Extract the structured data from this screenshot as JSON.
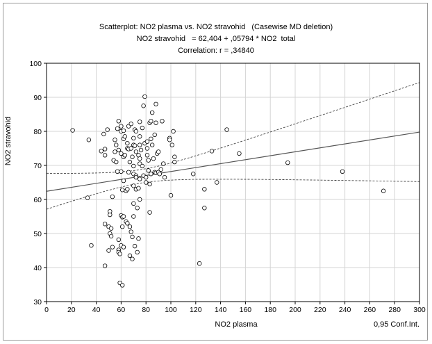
{
  "chart_data": {
    "type": "scatter",
    "title": "Scatterplot: NO2 plasma vs. NO2 stravohid   (Casewise MD deletion)",
    "subtitle_equation": "NO2 stravohid   = 62,404 + ,05794 * NO2  total",
    "subtitle_correlation": "Correlation: r = ,34840",
    "xlabel": "NO2 plasma",
    "ylabel": "NO2 stravohid",
    "conf_label": "0,95 Conf.Int.",
    "xlim": [
      0,
      300
    ],
    "ylim": [
      30,
      100
    ],
    "xticks": [
      "0",
      "20",
      "40",
      "60",
      "80",
      "100",
      "120",
      "140",
      "160",
      "180",
      "200",
      "220",
      "240",
      "260",
      "280",
      "300"
    ],
    "yticks": [
      "30",
      "40",
      "50",
      "60",
      "70",
      "80",
      "90",
      "100"
    ],
    "grid": true,
    "regression": {
      "intercept": 62.404,
      "slope": 0.05794
    },
    "series": [
      {
        "points": [
          [
            21,
            80.3
          ],
          [
            33,
            60.5
          ],
          [
            34,
            77.5
          ],
          [
            36,
            46.5
          ],
          [
            44,
            74.2
          ],
          [
            46,
            79.2
          ],
          [
            47,
            74.8
          ],
          [
            47,
            73.0
          ],
          [
            47,
            52.8
          ],
          [
            47,
            40.5
          ],
          [
            49,
            80.5
          ],
          [
            50,
            52.0
          ],
          [
            50,
            45.0
          ],
          [
            51,
            56.5
          ],
          [
            51,
            55.5
          ],
          [
            51,
            50.0
          ],
          [
            52,
            51.5
          ],
          [
            52,
            49.2
          ],
          [
            53,
            60.8
          ],
          [
            53,
            46.0
          ],
          [
            54,
            71.5
          ],
          [
            55,
            77.5
          ],
          [
            55,
            74.0
          ],
          [
            56,
            76.0
          ],
          [
            56,
            71.0
          ],
          [
            57,
            80.8
          ],
          [
            57,
            68.2
          ],
          [
            58,
            83.0
          ],
          [
            58,
            74.5
          ],
          [
            58,
            48.2
          ],
          [
            58,
            45.2
          ],
          [
            58,
            44.5
          ],
          [
            59,
            44.0
          ],
          [
            59,
            35.5
          ],
          [
            60,
            81.5
          ],
          [
            60,
            80.0
          ],
          [
            60,
            73.5
          ],
          [
            60,
            68.2
          ],
          [
            60,
            55.3
          ],
          [
            60,
            46.5
          ],
          [
            61,
            62.8
          ],
          [
            61,
            54.8
          ],
          [
            61,
            52.0
          ],
          [
            61,
            34.8
          ],
          [
            62,
            80.2
          ],
          [
            62,
            77.8
          ],
          [
            62,
            72.5
          ],
          [
            62,
            65.5
          ],
          [
            62,
            55.0
          ],
          [
            62,
            46.0
          ],
          [
            63,
            78.5
          ],
          [
            63,
            73.0
          ],
          [
            64,
            62.5
          ],
          [
            64,
            53.5
          ],
          [
            65,
            76.5
          ],
          [
            65,
            75.0
          ],
          [
            65,
            63.0
          ],
          [
            65,
            53.0
          ],
          [
            66,
            81.5
          ],
          [
            66,
            74.8
          ],
          [
            66,
            68.0
          ],
          [
            67,
            71.0
          ],
          [
            67,
            52.0
          ],
          [
            67,
            43.5
          ],
          [
            68,
            82.2
          ],
          [
            68,
            75.0
          ],
          [
            68,
            50.5
          ],
          [
            69,
            72.5
          ],
          [
            69,
            49.0
          ],
          [
            69,
            42.5
          ],
          [
            70,
            78.0
          ],
          [
            70,
            76.0
          ],
          [
            70,
            69.8
          ],
          [
            70,
            67.5
          ],
          [
            70,
            64.0
          ],
          [
            70,
            58.8
          ],
          [
            70,
            55.0
          ],
          [
            71,
            80.5
          ],
          [
            71,
            75.8
          ],
          [
            71,
            46.3
          ],
          [
            72,
            80.0
          ],
          [
            72,
            74.0
          ],
          [
            72,
            67.0
          ],
          [
            72,
            66.5
          ],
          [
            72,
            63.0
          ],
          [
            73,
            57.5
          ],
          [
            73,
            44.5
          ],
          [
            74,
            73.0
          ],
          [
            74,
            63.3
          ],
          [
            74,
            48.5
          ],
          [
            75,
            82.8
          ],
          [
            75,
            78.5
          ],
          [
            75,
            76.0
          ],
          [
            75,
            72.0
          ],
          [
            75,
            70.5
          ],
          [
            75,
            66.0
          ],
          [
            75,
            60.0
          ],
          [
            76,
            74.5
          ],
          [
            77,
            81.0
          ],
          [
            77,
            69.8
          ],
          [
            78,
            87.5
          ],
          [
            78,
            67.0
          ],
          [
            79,
            90.2
          ],
          [
            79,
            76.5
          ],
          [
            80,
            66.5
          ],
          [
            80,
            65.0
          ],
          [
            81,
            77.0
          ],
          [
            81,
            75.0
          ],
          [
            81,
            73.0
          ],
          [
            82,
            71.5
          ],
          [
            82,
            68.5
          ],
          [
            83,
            82.5
          ],
          [
            83,
            64.5
          ],
          [
            83,
            56.2
          ],
          [
            84,
            83.0
          ],
          [
            84,
            77.8
          ],
          [
            84,
            67.5
          ],
          [
            85,
            85.5
          ],
          [
            85,
            76.0
          ],
          [
            86,
            72.0
          ],
          [
            87,
            79.0
          ],
          [
            87,
            68.0
          ],
          [
            88,
            88.0
          ],
          [
            88,
            82.5
          ],
          [
            88,
            67.8
          ],
          [
            89,
            73.5
          ],
          [
            90,
            74.0
          ],
          [
            90,
            68.0
          ],
          [
            91,
            67.5
          ],
          [
            92,
            68.8
          ],
          [
            93,
            83.0
          ],
          [
            94,
            70.5
          ],
          [
            95,
            66.5
          ],
          [
            99,
            78.0
          ],
          [
            99,
            77.5
          ],
          [
            100,
            61.2
          ],
          [
            101,
            76.0
          ],
          [
            102,
            80.0
          ],
          [
            103,
            72.5
          ],
          [
            103,
            71.0
          ],
          [
            118,
            67.5
          ],
          [
            123,
            41.2
          ],
          [
            127,
            63.0
          ],
          [
            127,
            57.5
          ],
          [
            133,
            74.2
          ],
          [
            137,
            65.0
          ],
          [
            145,
            80.5
          ],
          [
            155,
            73.5
          ],
          [
            194,
            70.8
          ],
          [
            238,
            68.2
          ],
          [
            271,
            62.5
          ]
        ]
      }
    ]
  }
}
